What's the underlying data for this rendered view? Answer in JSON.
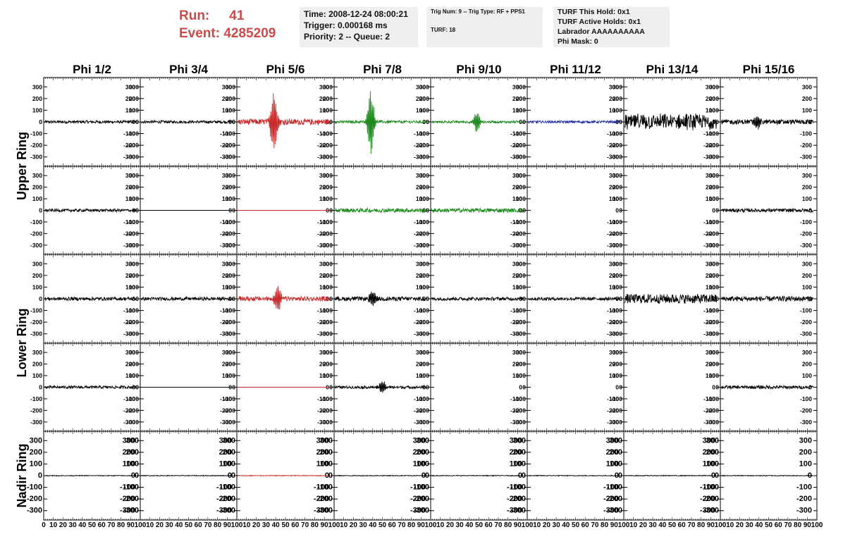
{
  "header": {
    "run_label": "Run:",
    "run_value": "41",
    "event_label": "Event:",
    "event_value": "4285209"
  },
  "info_box_1": {
    "time": "Time: 2008-12-24 08:00:21",
    "trigger": "Trigger: 0.000168 ms",
    "priority": "Priority: 2 -- Queue: 2"
  },
  "info_box_2": {
    "trig": "Trig Num: 9 -- Trig Type: RF + PPS1",
    "turf": "TURF: 18"
  },
  "info_box_3": {
    "hold": "TURF This Hold: 0x1",
    "active": "TURF Active Holds: 0x1",
    "labrador": "Labrador AAAAAAAAAA",
    "phimask": "Phi Mask: 0"
  },
  "colors": {
    "default": "#000000",
    "red": "#c72a2a",
    "green": "#1d8a1d",
    "blue": "#1f2aa0",
    "title_red": "#cc4a4a"
  },
  "chart_data": {
    "type": "line",
    "column_labels": [
      "Phi 1/2",
      "Phi 3/4",
      "Phi 5/6",
      "Phi 7/8",
      "Phi 9/10",
      "Phi 11/12",
      "Phi 13/14",
      "Phi 15/16"
    ],
    "ring_labels": [
      "Upper Ring",
      "Lower Ring",
      "Nadir Ring"
    ],
    "xlim": [
      0,
      100
    ],
    "x_ticks": [
      "0",
      "10",
      "20",
      "30",
      "40",
      "50",
      "60",
      "70",
      "80",
      "90",
      "100"
    ],
    "ylim": [
      -380,
      380
    ],
    "y_ticks": [
      "300",
      "200",
      "100",
      "0",
      "-100",
      "-200",
      "-300"
    ],
    "rows": [
      {
        "ring": "Upper Ring",
        "panels": [
          {
            "color": "default",
            "noise": 12,
            "pulse_x": 0,
            "pulse_amp": 0
          },
          {
            "color": "default",
            "noise": 12,
            "pulse_x": 0,
            "pulse_amp": 0
          },
          {
            "color": "red",
            "noise": 25,
            "pulse_x": 38,
            "pulse_amp": 330
          },
          {
            "color": "green",
            "noise": 12,
            "pulse_x": 38,
            "pulse_amp": 340
          },
          {
            "color": "green",
            "noise": 10,
            "pulse_x": 48,
            "pulse_amp": 100
          },
          {
            "color": "blue",
            "noise": 10,
            "pulse_x": 0,
            "pulse_amp": 0
          },
          {
            "color": "default",
            "noise": 60,
            "pulse_x": 0,
            "pulse_amp": 0
          },
          {
            "color": "default",
            "noise": 20,
            "pulse_x": 38,
            "pulse_amp": 80
          }
        ]
      },
      {
        "ring": "Upper Ring",
        "panels": [
          {
            "color": "default",
            "noise": 12,
            "pulse_x": 0,
            "pulse_amp": 0
          },
          {
            "color": "default",
            "noise": 0,
            "pulse_x": 0,
            "pulse_amp": 0
          },
          {
            "color": "red",
            "noise": 0,
            "pulse_x": 0,
            "pulse_amp": 0
          },
          {
            "color": "green",
            "noise": 18,
            "pulse_x": 0,
            "pulse_amp": 0
          },
          {
            "color": "green",
            "noise": 18,
            "pulse_x": 0,
            "pulse_amp": 0
          },
          {
            "color": "none",
            "noise": 0,
            "pulse_x": 0,
            "pulse_amp": 0
          },
          {
            "color": "none",
            "noise": 0,
            "pulse_x": 0,
            "pulse_amp": 0
          },
          {
            "color": "default",
            "noise": 15,
            "pulse_x": 0,
            "pulse_amp": 0
          }
        ]
      },
      {
        "ring": "Lower Ring",
        "panels": [
          {
            "color": "default",
            "noise": 14,
            "pulse_x": 0,
            "pulse_amp": 0
          },
          {
            "color": "default",
            "noise": 14,
            "pulse_x": 0,
            "pulse_amp": 0
          },
          {
            "color": "red",
            "noise": 20,
            "pulse_x": 42,
            "pulse_amp": 130
          },
          {
            "color": "default",
            "noise": 18,
            "pulse_x": 40,
            "pulse_amp": 80
          },
          {
            "color": "default",
            "noise": 14,
            "pulse_x": 0,
            "pulse_amp": 0
          },
          {
            "color": "default",
            "noise": 14,
            "pulse_x": 0,
            "pulse_amp": 0
          },
          {
            "color": "default",
            "noise": 40,
            "pulse_x": 0,
            "pulse_amp": 0
          },
          {
            "color": "default",
            "noise": 22,
            "pulse_x": 0,
            "pulse_amp": 0
          }
        ]
      },
      {
        "ring": "Lower Ring",
        "panels": [
          {
            "color": "default",
            "noise": 12,
            "pulse_x": 0,
            "pulse_amp": 0
          },
          {
            "color": "default",
            "noise": 0,
            "pulse_x": 0,
            "pulse_amp": 0
          },
          {
            "color": "red",
            "noise": 0,
            "pulse_x": 0,
            "pulse_amp": 0
          },
          {
            "color": "default",
            "noise": 12,
            "pulse_x": 50,
            "pulse_amp": 70
          },
          {
            "color": "none",
            "noise": 0,
            "pulse_x": 0,
            "pulse_amp": 0
          },
          {
            "color": "none",
            "noise": 0,
            "pulse_x": 0,
            "pulse_amp": 0
          },
          {
            "color": "none",
            "noise": 0,
            "pulse_x": 0,
            "pulse_amp": 0
          },
          {
            "color": "default",
            "noise": 14,
            "pulse_x": 0,
            "pulse_amp": 0
          }
        ]
      },
      {
        "ring": "Nadir Ring",
        "panels": [
          {
            "color": "default",
            "noise": 3,
            "pulse_x": 0,
            "pulse_amp": 0
          },
          {
            "color": "default",
            "noise": 3,
            "pulse_x": 0,
            "pulse_amp": 0
          },
          {
            "color": "red",
            "noise": 3,
            "pulse_x": 0,
            "pulse_amp": 0
          },
          {
            "color": "default",
            "noise": 3,
            "pulse_x": 0,
            "pulse_amp": 0
          },
          {
            "color": "default",
            "noise": 3,
            "pulse_x": 0,
            "pulse_amp": 0
          },
          {
            "color": "default",
            "noise": 3,
            "pulse_x": 0,
            "pulse_amp": 0
          },
          {
            "color": "default",
            "noise": 3,
            "pulse_x": 0,
            "pulse_amp": 0
          },
          {
            "color": "default",
            "noise": 3,
            "pulse_x": 0,
            "pulse_amp": 0
          }
        ]
      }
    ]
  }
}
